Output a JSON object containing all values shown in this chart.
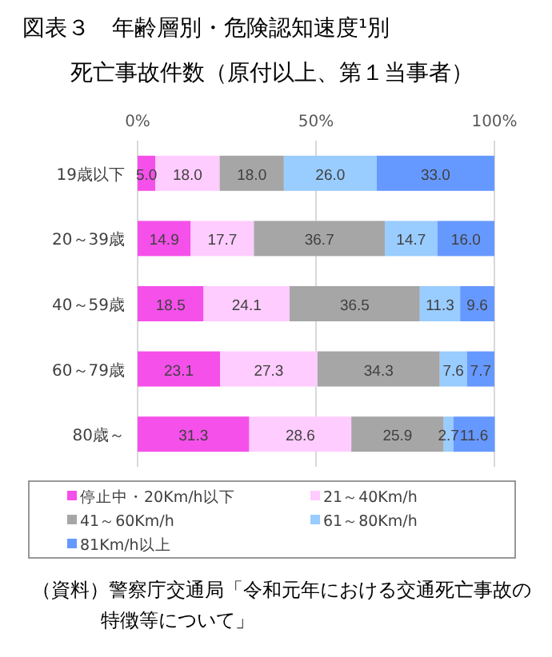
{
  "chart_data": {
    "type": "bar",
    "orientation": "horizontal",
    "stacked": true,
    "title": "図表３　年齢層別・危険認知速度¹別",
    "subtitle": "死亡事故件数（原付以上、第１当事者）",
    "categories": [
      "19歳以下",
      "20～39歳",
      "40～59歳",
      "60～79歳",
      "80歳～"
    ],
    "xlim": [
      0,
      100
    ],
    "xticks": [
      {
        "value": 0,
        "label": "0%"
      },
      {
        "value": 50,
        "label": "50%"
      },
      {
        "value": 100,
        "label": "100%"
      }
    ],
    "grid": "x",
    "legend": "bottom",
    "series": [
      {
        "name": "停止中・20Km/h以下",
        "color": "#f550ea",
        "values": [
          5.0,
          14.9,
          18.5,
          23.1,
          31.3
        ],
        "value_labels": [
          "5.0",
          "14.9",
          "18.5",
          "23.1",
          "31.3"
        ]
      },
      {
        "name": "21～40Km/h",
        "color": "#ffccff",
        "values": [
          18.0,
          17.7,
          24.1,
          27.3,
          28.6
        ],
        "value_labels": [
          "18.0",
          "17.7",
          "24.1",
          "27.3",
          "28.6"
        ]
      },
      {
        "name": "41～60Km/h",
        "color": "#a6a6a6",
        "values": [
          18.0,
          36.7,
          36.5,
          34.3,
          25.9
        ],
        "value_labels": [
          "18.0",
          "36.7",
          "36.5",
          "34.3",
          "25.9"
        ]
      },
      {
        "name": "61～80Km/h",
        "color": "#99ccff",
        "values": [
          26.0,
          14.7,
          11.3,
          7.6,
          2.7
        ],
        "value_labels": [
          "26.0",
          "14.7",
          "11.3",
          "7.6",
          "2.7"
        ]
      },
      {
        "name": "81Km/h以上",
        "color": "#6699ff",
        "values": [
          33.0,
          16.0,
          9.6,
          7.7,
          11.6
        ],
        "value_labels": [
          "33.0",
          "16.0",
          "9.6",
          "7.7",
          "11.6"
        ]
      }
    ],
    "annotations": [
      "（資料）警察庁交通局「令和元年における交通死亡事故の特徴等について」"
    ]
  }
}
